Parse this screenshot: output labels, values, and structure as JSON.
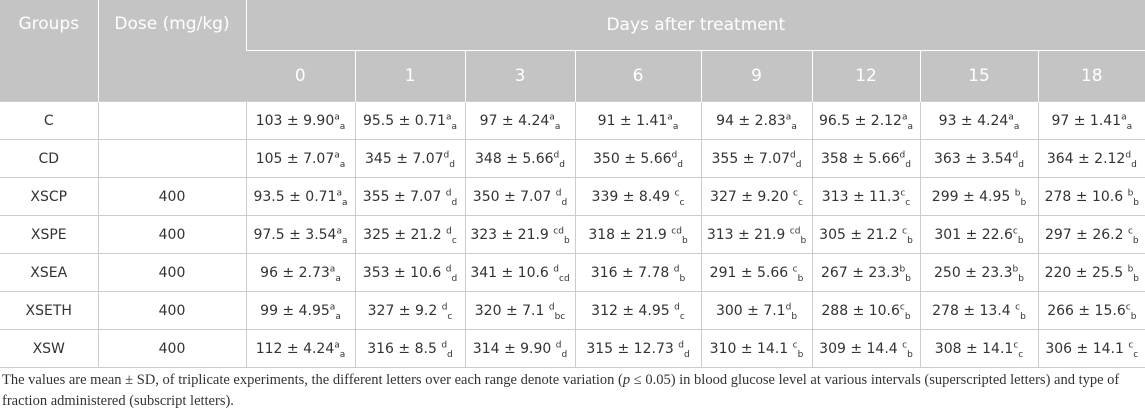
{
  "table": {
    "headers": {
      "group": "Groups",
      "dose": "Dose (mg/kg)",
      "span": "Days after treatment",
      "days": [
        "0",
        "1",
        "3",
        "6",
        "9",
        "12",
        "15",
        "18"
      ]
    },
    "rows": [
      {
        "group": "C",
        "cells": [
          {
            "text": "103 ± 9.90",
            "sup": "a",
            "sub": "a"
          },
          {
            "text": "95.5 ± 0.71",
            "sup": "a",
            "sub": "a"
          },
          {
            "text": "97 ± 4.24",
            "sup": "a",
            "sub": "a"
          },
          {
            "text": "91 ± 1.41",
            "sup": "a",
            "sub": "a"
          },
          {
            "text": "94 ± 2.83",
            "sup": "a",
            "sub": "a"
          },
          {
            "text": "96.5 ± 2.12",
            "sup": "a",
            "sub": "a"
          },
          {
            "text": "93 ± 4.24",
            "sup": "a",
            "sub": "a"
          },
          {
            "text": "97 ± 1.41",
            "sup": "a",
            "sub": "a"
          }
        ]
      },
      {
        "group": "CD",
        "cells": [
          {
            "text": "105 ± 7.07",
            "sup": "a",
            "sub": "a"
          },
          {
            "text": "345 ± 7.07",
            "sup": "d",
            "sub": "d"
          },
          {
            "text": "348 ± 5.66",
            "sup": "d",
            "sub": "d"
          },
          {
            "text": "350 ± 5.66",
            "sup": "d",
            "sub": "d"
          },
          {
            "text": "355 ± 7.07",
            "sup": "d",
            "sub": "d"
          },
          {
            "text": "358 ± 5.66",
            "sup": "d",
            "sub": "d"
          },
          {
            "text": "363 ± 3.54",
            "sup": "d",
            "sub": "d"
          },
          {
            "text": "364 ± 2.12",
            "sup": "d",
            "sub": "d"
          }
        ]
      },
      {
        "group": "XSCP",
        "dose": "400",
        "cells": [
          {
            "text": "93.5 ± 0.71",
            "sup": "a",
            "sub": "a"
          },
          {
            "text": "355 ± 7.07 ",
            "sup": "d",
            "sub": "d"
          },
          {
            "text": "350 ± 7.07 ",
            "sup": "d",
            "sub": "d"
          },
          {
            "text": "339 ± 8.49 ",
            "sup": "c",
            "sub": "c"
          },
          {
            "text": "327 ± 9.20 ",
            "sup": "c",
            "sub": "c"
          },
          {
            "text": "313 ± 11.3",
            "sup": "c",
            "sub": "c"
          },
          {
            "text": "299 ± 4.95 ",
            "sup": "b",
            "sub": "b"
          },
          {
            "text": "278 ± 10.6 ",
            "sup": "b",
            "sub": "b"
          }
        ]
      },
      {
        "group": "XSPE",
        "dose": "400",
        "cells": [
          {
            "text": "97.5 ± 3.54",
            "sup": "a",
            "sub": "a"
          },
          {
            "text": "325 ± 21.2 ",
            "sup": "d",
            "sub": "c"
          },
          {
            "text": "323 ± 21.9 ",
            "sup": "cd",
            "sub": "b"
          },
          {
            "text": "318 ± 21.9 ",
            "sup": "cd",
            "sub": "b"
          },
          {
            "text": "313 ± 21.9 ",
            "sup": "cd",
            "sub": "b"
          },
          {
            "text": "305 ± 21.2 ",
            "sup": "c",
            "sub": "b"
          },
          {
            "text": "301 ± 22.6",
            "sup": "c",
            "sub": "b"
          },
          {
            "text": "297 ± 26.2 ",
            "sup": "c",
            "sub": "b"
          }
        ]
      },
      {
        "group": "XSEA",
        "dose": "400",
        "cells": [
          {
            "text": "96 ± 2.73",
            "sup": "a",
            "sub": "a"
          },
          {
            "text": "353 ± 10.6 ",
            "sup": "d",
            "sub": "d"
          },
          {
            "text": "341 ± 10.6 ",
            "sup": "d",
            "sub": "cd"
          },
          {
            "text": "316 ± 7.78 ",
            "sup": "d",
            "sub": "b"
          },
          {
            "text": "291 ± 5.66 ",
            "sup": "c",
            "sub": "b"
          },
          {
            "text": "267 ± 23.3",
            "sup": "b",
            "sub": "b"
          },
          {
            "text": "250 ± 23.3",
            "sup": "b",
            "sub": "b"
          },
          {
            "text": "220 ± 25.5 ",
            "sup": "b",
            "sub": "b"
          }
        ]
      },
      {
        "group": "XSETH",
        "dose": "400",
        "cells": [
          {
            "text": "99 ± 4.95",
            "sup": "a",
            "sub": "a"
          },
          {
            "text": "327 ± 9.2 ",
            "sup": "d",
            "sub": "c"
          },
          {
            "text": "320 ± 7.1 ",
            "sup": "d",
            "sub": "bc"
          },
          {
            "text": "312 ± 4.95 ",
            "sup": "d",
            "sub": "c"
          },
          {
            "text": "300 ± 7.1",
            "sup": "d",
            "sub": "b"
          },
          {
            "text": "288 ± 10.6",
            "sup": "c",
            "sub": "b"
          },
          {
            "text": "278 ± 13.4 ",
            "sup": "c",
            "sub": "b"
          },
          {
            "text": "266 ± 15.6",
            "sup": "c",
            "sub": "b"
          }
        ]
      },
      {
        "group": "XSW",
        "dose": "400",
        "cells": [
          {
            "text": "112 ± 4.24",
            "sup": "a",
            "sub": "a"
          },
          {
            "text": "316 ± 8.5 ",
            "sup": "d",
            "sub": "d"
          },
          {
            "text": "314 ± 9.90 ",
            "sup": "d",
            "sub": "d"
          },
          {
            "text": "315 ± 12.73 ",
            "sup": "d",
            "sub": "d"
          },
          {
            "text": "310 ± 14.1 ",
            "sup": "c",
            "sub": "b"
          },
          {
            "text": "309 ± 14.4 ",
            "sup": "c",
            "sub": "b"
          },
          {
            "text": "308 ± 14.1",
            "sup": "c",
            "sub": "c"
          },
          {
            "text": "306 ± 14.1 ",
            "sup": "c",
            "sub": "c"
          }
        ]
      }
    ]
  },
  "footnote": [
    "The values are mean ± SD, of triplicate experiments, the different letters over each range denote variation (",
    "p",
    " ≤ 0.05) in blood glucose level at various intervals (superscripted letters) and type of fraction administered (subscript letters)."
  ]
}
